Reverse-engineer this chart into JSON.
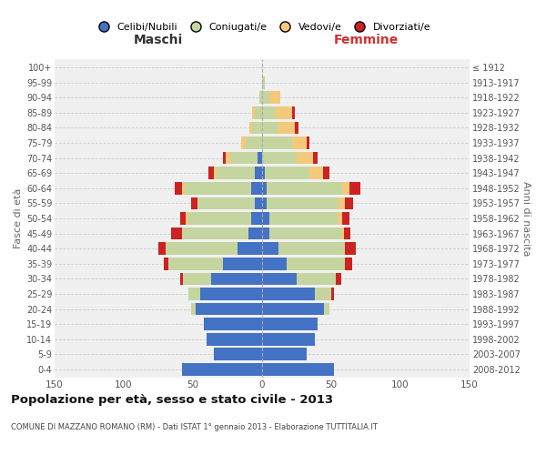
{
  "age_groups": [
    "0-4",
    "5-9",
    "10-14",
    "15-19",
    "20-24",
    "25-29",
    "30-34",
    "35-39",
    "40-44",
    "45-49",
    "50-54",
    "55-59",
    "60-64",
    "65-69",
    "70-74",
    "75-79",
    "80-84",
    "85-89",
    "90-94",
    "95-99",
    "100+"
  ],
  "birth_years": [
    "2008-2012",
    "2003-2007",
    "1998-2002",
    "1993-1997",
    "1988-1992",
    "1983-1987",
    "1978-1982",
    "1973-1977",
    "1968-1972",
    "1963-1967",
    "1958-1962",
    "1953-1957",
    "1948-1952",
    "1943-1947",
    "1938-1942",
    "1933-1937",
    "1928-1932",
    "1923-1927",
    "1918-1922",
    "1913-1917",
    "≤ 1912"
  ],
  "colors": {
    "celibe": "#4472C4",
    "coniugato": "#C5D5A0",
    "vedovo": "#F5C97A",
    "divorziato": "#CC2222"
  },
  "title": "Popolazione per età, sesso e stato civile - 2013",
  "subtitle": "COMUNE DI MAZZANO ROMANO (RM) - Dati ISTAT 1° gennaio 2013 - Elaborazione TUTTITALIA.IT",
  "xlabel_left": "Maschi",
  "xlabel_right": "Femmine",
  "ylabel_left": "Fasce di età",
  "ylabel_right": "Anni di nascita",
  "xlim": 150,
  "bg_color": "#FFFFFF",
  "plot_bg": "#F0F0F0",
  "grid_color": "#DDDDDD",
  "legend_labels": [
    "Celibi/Nubili",
    "Coniugati/e",
    "Vedovi/e",
    "Divorziati/e"
  ],
  "m_cel": [
    58,
    35,
    40,
    42,
    48,
    45,
    37,
    28,
    18,
    10,
    8,
    5,
    8,
    5,
    3,
    0,
    0,
    0,
    0,
    0,
    0
  ],
  "m_con": [
    0,
    0,
    0,
    0,
    3,
    8,
    20,
    40,
    52,
    48,
    45,
    42,
    48,
    28,
    20,
    12,
    7,
    5,
    2,
    0,
    0
  ],
  "m_ved": [
    0,
    0,
    0,
    0,
    0,
    0,
    0,
    0,
    0,
    0,
    2,
    0,
    2,
    2,
    3,
    3,
    2,
    2,
    0,
    0,
    0
  ],
  "m_div": [
    0,
    0,
    0,
    0,
    0,
    0,
    2,
    3,
    5,
    8,
    4,
    4,
    5,
    4,
    2,
    0,
    0,
    0,
    0,
    0,
    0
  ],
  "f_nub": [
    52,
    32,
    38,
    40,
    45,
    38,
    25,
    18,
    12,
    5,
    5,
    3,
    3,
    2,
    0,
    0,
    0,
    0,
    0,
    0,
    0
  ],
  "f_con": [
    0,
    0,
    0,
    0,
    4,
    12,
    28,
    42,
    48,
    52,
    50,
    52,
    55,
    32,
    25,
    22,
    12,
    10,
    5,
    2,
    0
  ],
  "f_ved": [
    0,
    0,
    0,
    0,
    0,
    0,
    0,
    0,
    0,
    2,
    3,
    5,
    5,
    10,
    12,
    10,
    12,
    12,
    8,
    0,
    0
  ],
  "f_div": [
    0,
    0,
    0,
    0,
    0,
    2,
    4,
    5,
    8,
    5,
    5,
    6,
    8,
    5,
    3,
    2,
    2,
    2,
    0,
    0,
    0
  ]
}
